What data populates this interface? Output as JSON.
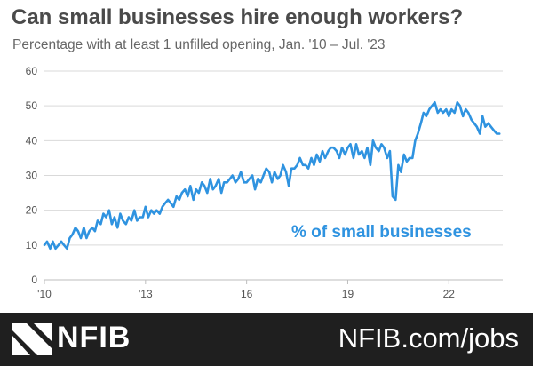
{
  "chart_data": {
    "type": "line",
    "title": "Can small businesses hire enough workers?",
    "subtitle": "Percentage with at least 1 unfilled opening, Jan. '10 –  Jul. '23",
    "series_label": "% of small businesses",
    "xlabel": "",
    "ylabel": "",
    "ylim": [
      0,
      60
    ],
    "yticks": [
      0,
      10,
      20,
      30,
      40,
      50,
      60
    ],
    "xlim": [
      2010,
      2023.6
    ],
    "xticks": [
      {
        "value": 2010,
        "label": "'10"
      },
      {
        "value": 2013,
        "label": "'13"
      },
      {
        "value": 2016,
        "label": "16"
      },
      {
        "value": 2019,
        "label": "19"
      },
      {
        "value": 2022,
        "label": "22"
      }
    ],
    "grid": true,
    "line_color": "#2f93e0",
    "series": [
      {
        "name": "% of small businesses",
        "x": [
          2010.0,
          2010.08,
          2010.17,
          2010.25,
          2010.33,
          2010.42,
          2010.5,
          2010.58,
          2010.67,
          2010.75,
          2010.83,
          2010.92,
          2011.0,
          2011.08,
          2011.17,
          2011.25,
          2011.33,
          2011.42,
          2011.5,
          2011.58,
          2011.67,
          2011.75,
          2011.83,
          2011.92,
          2012.0,
          2012.08,
          2012.17,
          2012.25,
          2012.33,
          2012.42,
          2012.5,
          2012.58,
          2012.67,
          2012.75,
          2012.83,
          2012.92,
          2013.0,
          2013.08,
          2013.17,
          2013.25,
          2013.33,
          2013.42,
          2013.5,
          2013.58,
          2013.67,
          2013.75,
          2013.83,
          2013.92,
          2014.0,
          2014.08,
          2014.17,
          2014.25,
          2014.33,
          2014.42,
          2014.5,
          2014.58,
          2014.67,
          2014.75,
          2014.83,
          2014.92,
          2015.0,
          2015.08,
          2015.17,
          2015.25,
          2015.33,
          2015.42,
          2015.5,
          2015.58,
          2015.67,
          2015.75,
          2015.83,
          2015.92,
          2016.0,
          2016.08,
          2016.17,
          2016.25,
          2016.33,
          2016.42,
          2016.5,
          2016.58,
          2016.67,
          2016.75,
          2016.83,
          2016.92,
          2017.0,
          2017.08,
          2017.17,
          2017.25,
          2017.33,
          2017.42,
          2017.5,
          2017.58,
          2017.67,
          2017.75,
          2017.83,
          2017.92,
          2018.0,
          2018.08,
          2018.17,
          2018.25,
          2018.33,
          2018.42,
          2018.5,
          2018.58,
          2018.67,
          2018.75,
          2018.83,
          2018.92,
          2019.0,
          2019.08,
          2019.17,
          2019.25,
          2019.33,
          2019.42,
          2019.5,
          2019.58,
          2019.67,
          2019.75,
          2019.83,
          2019.92,
          2020.0,
          2020.08,
          2020.17,
          2020.25,
          2020.33,
          2020.42,
          2020.5,
          2020.58,
          2020.67,
          2020.75,
          2020.83,
          2020.92,
          2021.0,
          2021.08,
          2021.17,
          2021.25,
          2021.33,
          2021.42,
          2021.5,
          2021.58,
          2021.67,
          2021.75,
          2021.83,
          2021.92,
          2022.0,
          2022.08,
          2022.17,
          2022.25,
          2022.33,
          2022.42,
          2022.5,
          2022.58,
          2022.67,
          2022.75,
          2022.83,
          2022.92,
          2023.0,
          2023.08,
          2023.17,
          2023.25,
          2023.33,
          2023.42,
          2023.5
        ],
        "y": [
          10,
          11,
          9,
          11,
          9,
          10,
          11,
          10,
          9,
          12,
          13,
          15,
          14,
          12,
          15,
          12,
          14,
          15,
          14,
          17,
          16,
          19,
          18,
          20,
          16,
          18,
          15,
          19,
          17,
          16,
          18,
          17,
          20,
          17,
          18,
          18,
          21,
          18,
          20,
          19,
          20,
          19,
          21,
          22,
          23,
          22,
          21,
          24,
          23,
          25,
          26,
          24,
          27,
          23,
          26,
          25,
          28,
          27,
          25,
          29,
          26,
          27,
          29,
          25,
          28,
          28,
          29,
          30,
          28,
          29,
          31,
          28,
          28,
          29,
          30,
          26,
          29,
          28,
          30,
          32,
          31,
          28,
          31,
          29,
          30,
          33,
          31,
          27,
          32,
          32,
          33,
          35,
          33,
          33,
          32,
          35,
          33,
          36,
          34,
          37,
          35,
          37,
          38,
          38,
          37,
          35,
          38,
          36,
          38,
          39,
          35,
          39,
          36,
          37,
          35,
          38,
          33,
          40,
          38,
          37,
          39,
          38,
          35,
          37,
          24,
          23,
          33,
          31,
          36,
          34,
          35,
          35,
          40,
          42,
          45,
          48,
          47,
          49,
          50,
          51,
          48,
          49,
          48,
          49,
          47,
          49,
          48,
          51,
          50,
          47,
          49,
          48,
          46,
          45,
          44,
          42,
          47,
          44,
          45,
          44,
          43,
          42,
          42
        ]
      }
    ]
  },
  "footer": {
    "brand": "NFIB",
    "link": "NFIB.com/jobs"
  },
  "colors": {
    "footer_bg": "#1f1f1f",
    "title": "#4a4a4a",
    "grid": "#d9d9d9"
  }
}
